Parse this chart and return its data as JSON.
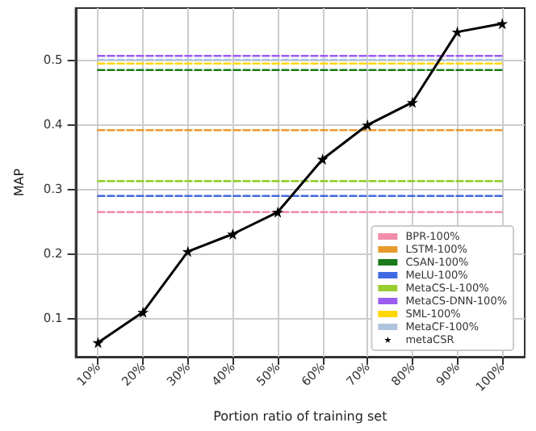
{
  "chart_data": {
    "type": "line",
    "xlabel": "Portion ratio of training set",
    "ylabel": "MAP",
    "categories": [
      "10%",
      "20%",
      "30%",
      "40%",
      "50%",
      "60%",
      "70%",
      "80%",
      "90%",
      "100%"
    ],
    "ylim": [
      0.04,
      0.58
    ],
    "yticks": [
      0.1,
      0.2,
      0.3,
      0.4,
      0.5
    ],
    "grid": true,
    "legend": "bottom right",
    "series": [
      {
        "name": "BPR-100%",
        "color": "#f28cab",
        "line_style": "dashed",
        "marker": "none",
        "values": [
          0.264,
          0.264,
          0.264,
          0.264,
          0.264,
          0.264,
          0.264,
          0.264,
          0.264,
          0.264
        ]
      },
      {
        "name": "LSTM-100%",
        "color": "#e89a2c",
        "line_style": "dashed",
        "marker": "none",
        "values": [
          0.391,
          0.391,
          0.391,
          0.391,
          0.391,
          0.391,
          0.391,
          0.391,
          0.391,
          0.391
        ]
      },
      {
        "name": "CSAN-100%",
        "color": "#1a7a1a",
        "line_style": "dashed",
        "marker": "none",
        "values": [
          0.484,
          0.484,
          0.484,
          0.484,
          0.484,
          0.484,
          0.484,
          0.484,
          0.484,
          0.484
        ]
      },
      {
        "name": "MeLU-100%",
        "color": "#4169e1",
        "line_style": "dashed",
        "marker": "none",
        "values": [
          0.289,
          0.289,
          0.289,
          0.289,
          0.289,
          0.289,
          0.289,
          0.289,
          0.289,
          0.289
        ]
      },
      {
        "name": "MetaCS-L-100%",
        "color": "#9acd32",
        "line_style": "dashed",
        "marker": "none",
        "values": [
          0.312,
          0.312,
          0.312,
          0.312,
          0.312,
          0.312,
          0.312,
          0.312,
          0.312,
          0.312
        ]
      },
      {
        "name": "MetaCS-DNN-100%",
        "color": "#9b5cf0",
        "line_style": "dashed",
        "marker": "none",
        "values": [
          0.506,
          0.506,
          0.506,
          0.506,
          0.506,
          0.506,
          0.506,
          0.506,
          0.506,
          0.506
        ]
      },
      {
        "name": "SML-100%",
        "color": "#ffd700",
        "line_style": "dashed",
        "marker": "none",
        "values": [
          0.494,
          0.494,
          0.494,
          0.494,
          0.494,
          0.494,
          0.494,
          0.494,
          0.494,
          0.494
        ]
      },
      {
        "name": "MetaCF-100%",
        "color": "#b0c4de",
        "line_style": "dashed",
        "marker": "none",
        "values": [
          0.5,
          0.5,
          0.5,
          0.5,
          0.5,
          0.5,
          0.5,
          0.5,
          0.5,
          0.5
        ]
      },
      {
        "name": "metaCSR",
        "color": "#000000",
        "line_style": "solid",
        "marker": "star",
        "values": [
          0.062,
          0.109,
          0.203,
          0.23,
          0.264,
          0.346,
          0.399,
          0.434,
          0.543,
          0.556
        ]
      }
    ]
  }
}
